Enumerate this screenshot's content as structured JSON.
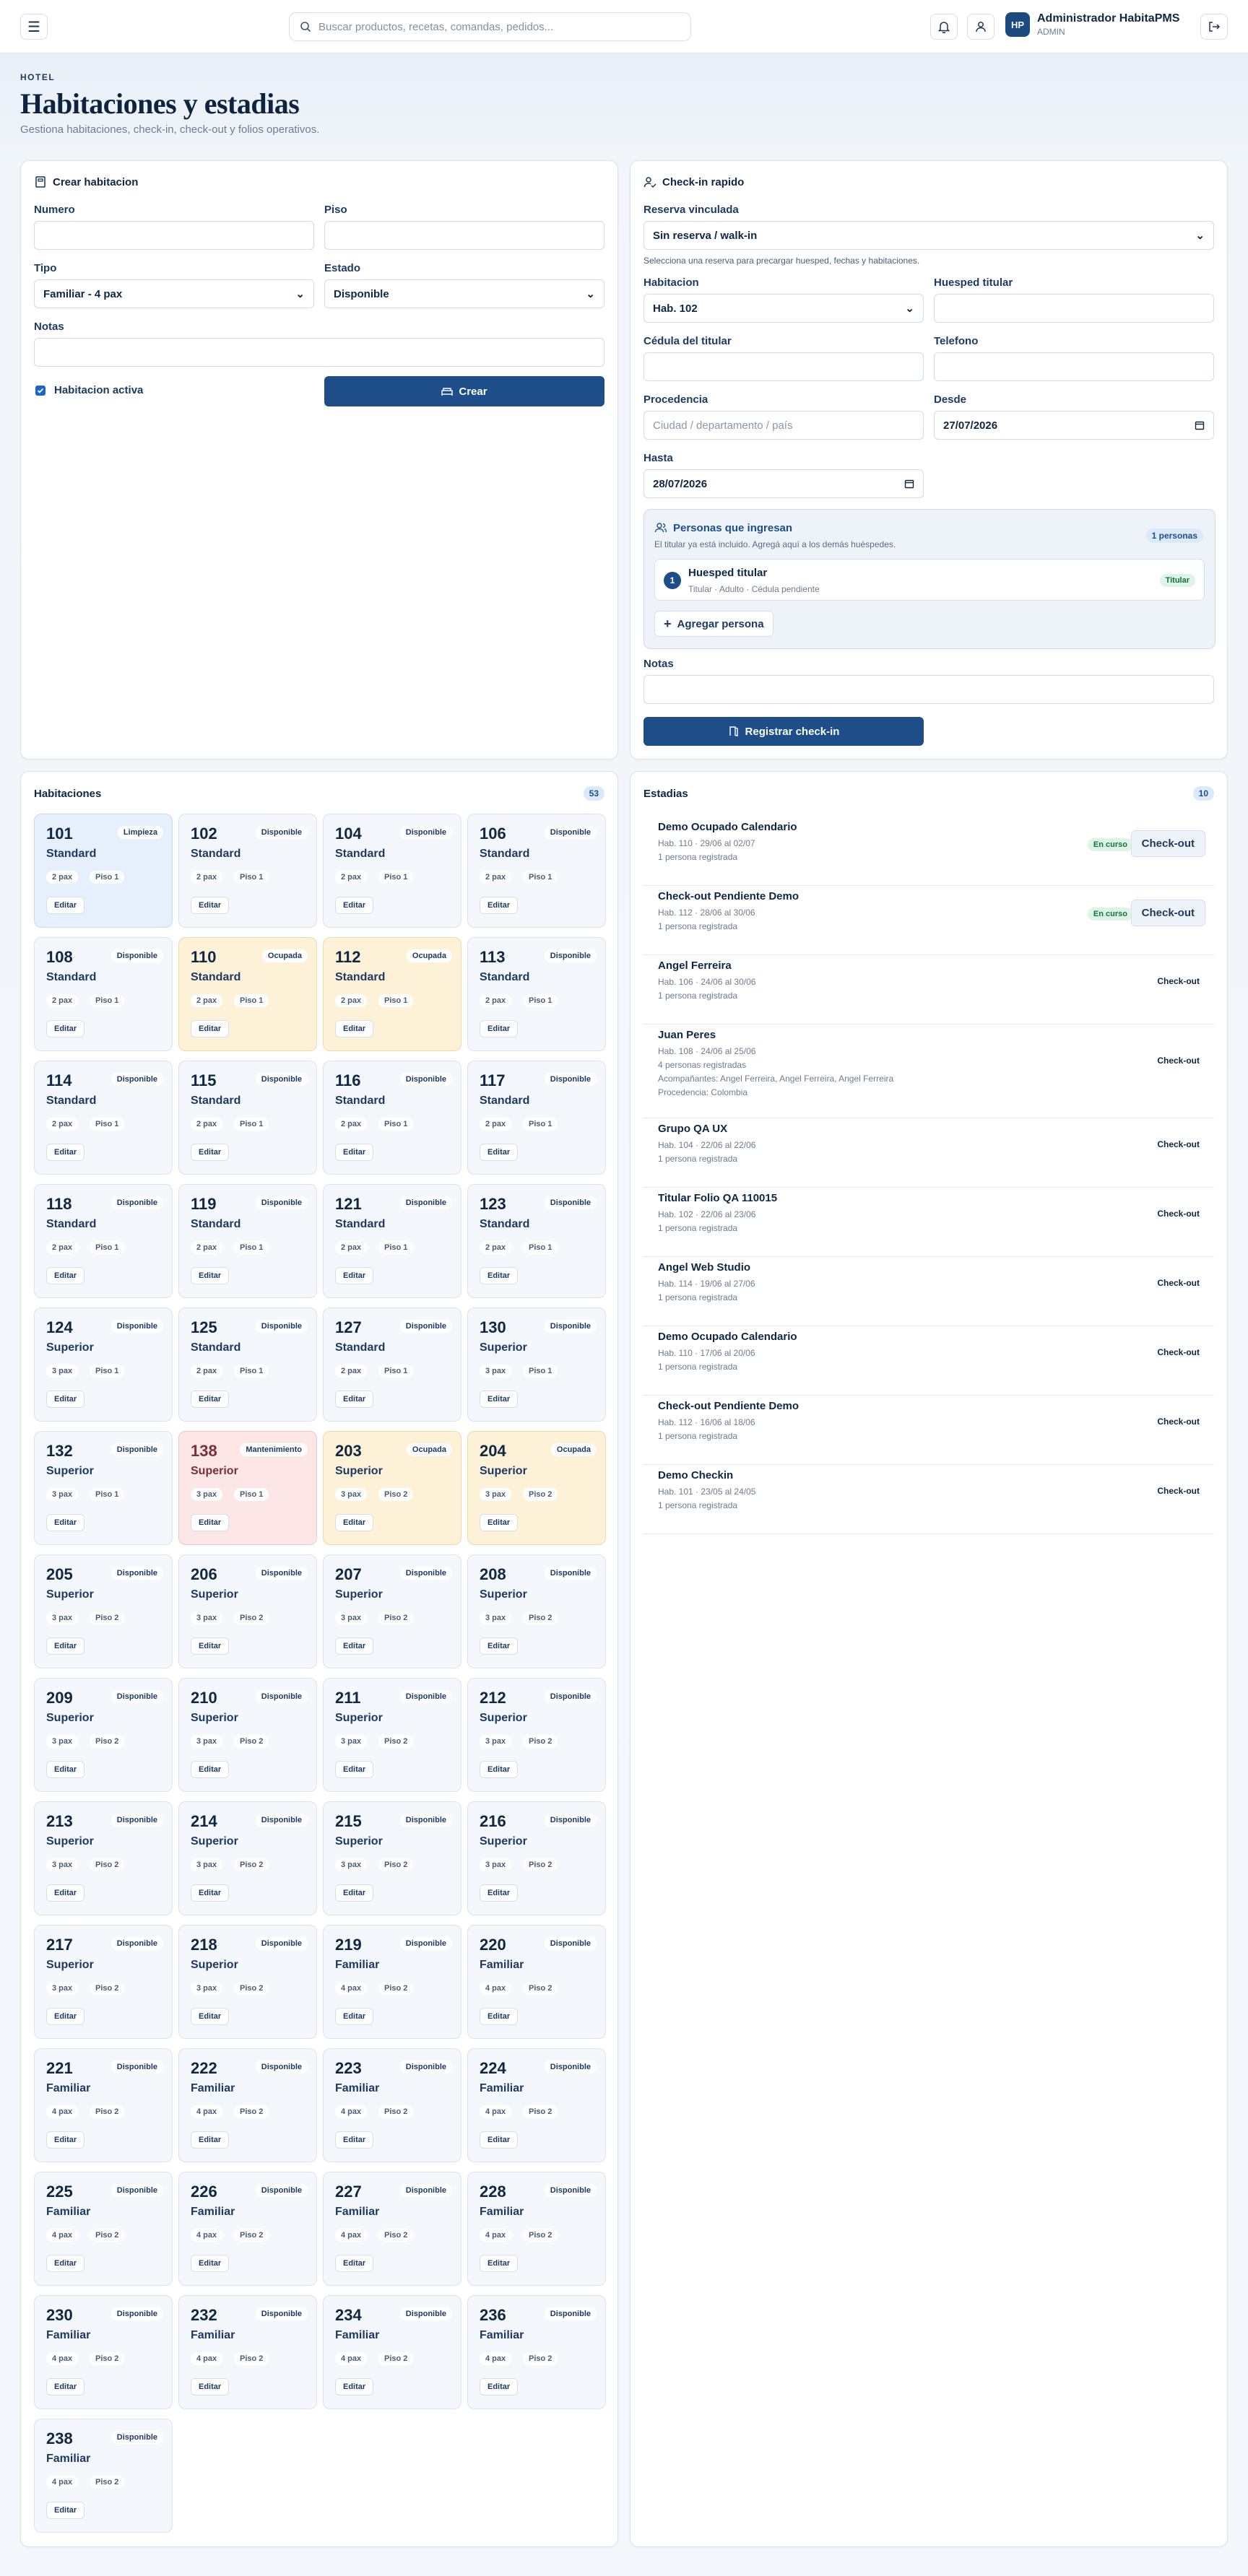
{
  "topbar": {
    "search_placeholder": "Buscar productos, recetas, comandas, pedidos...",
    "user_initials": "HP",
    "user_name": "Administrador HabitaPMS",
    "user_role": "ADMIN"
  },
  "header": {
    "eyebrow": "HOTEL",
    "title": "Habitaciones y estadias",
    "subtitle": "Gestiona habitaciones, check-in, check-out y folios operativos."
  },
  "create_room": {
    "title": "Crear habitacion",
    "numero_label": "Numero",
    "piso_label": "Piso",
    "tipo_label": "Tipo",
    "tipo_value": "Familiar - 4 pax",
    "estado_label": "Estado",
    "estado_value": "Disponible",
    "notas_label": "Notas",
    "activa_label": "Habitacion activa",
    "create_button": "Crear"
  },
  "checkin": {
    "title": "Check-in rapido",
    "reserva_label": "Reserva vinculada",
    "reserva_value": "Sin reserva / walk-in",
    "reserva_hint": "Selecciona una reserva para precargar huesped, fechas y habitaciones.",
    "habitacion_label": "Habitacion",
    "habitacion_value": "Hab. 102",
    "huesped_label": "Huesped titular",
    "cedula_label": "Cédula del titular",
    "telefono_label": "Telefono",
    "procedencia_label": "Procedencia",
    "procedencia_placeholder": "Ciudad / departamento / país",
    "desde_label": "Desde",
    "desde_value": "27/07/2026",
    "hasta_label": "Hasta",
    "hasta_value": "28/07/2026",
    "persons_title": "Personas que ingresan",
    "persons_hint": "El titular ya está incluido. Agregá aquí a los demás huéspedes.",
    "persons_count": "1 personas",
    "person_index": "1",
    "person_name": "Huesped titular",
    "person_detail": "Titular · Adulto · Cédula pendiente",
    "person_badge": "Titular",
    "add_person": "Agregar persona",
    "notas_label": "Notas",
    "submit": "Registrar check-in"
  },
  "rooms_panel": {
    "title": "Habitaciones",
    "count": "53",
    "edit_label": "Editar",
    "rooms": [
      {
        "num": "101",
        "status": "Limpieza",
        "type": "Standard",
        "pax": "2 pax",
        "floor": "Piso 1",
        "state": "cleaning"
      },
      {
        "num": "102",
        "status": "Disponible",
        "type": "Standard",
        "pax": "2 pax",
        "floor": "Piso 1",
        "state": "available"
      },
      {
        "num": "104",
        "status": "Disponible",
        "type": "Standard",
        "pax": "2 pax",
        "floor": "Piso 1",
        "state": "available"
      },
      {
        "num": "106",
        "status": "Disponible",
        "type": "Standard",
        "pax": "2 pax",
        "floor": "Piso 1",
        "state": "available"
      },
      {
        "num": "108",
        "status": "Disponible",
        "type": "Standard",
        "pax": "2 pax",
        "floor": "Piso 1",
        "state": "available"
      },
      {
        "num": "110",
        "status": "Ocupada",
        "type": "Standard",
        "pax": "2 pax",
        "floor": "Piso 1",
        "state": "occupied"
      },
      {
        "num": "112",
        "status": "Ocupada",
        "type": "Standard",
        "pax": "2 pax",
        "floor": "Piso 1",
        "state": "occupied"
      },
      {
        "num": "113",
        "status": "Disponible",
        "type": "Standard",
        "pax": "2 pax",
        "floor": "Piso 1",
        "state": "available"
      },
      {
        "num": "114",
        "status": "Disponible",
        "type": "Standard",
        "pax": "2 pax",
        "floor": "Piso 1",
        "state": "available"
      },
      {
        "num": "115",
        "status": "Disponible",
        "type": "Standard",
        "pax": "2 pax",
        "floor": "Piso 1",
        "state": "available"
      },
      {
        "num": "116",
        "status": "Disponible",
        "type": "Standard",
        "pax": "2 pax",
        "floor": "Piso 1",
        "state": "available"
      },
      {
        "num": "117",
        "status": "Disponible",
        "type": "Standard",
        "pax": "2 pax",
        "floor": "Piso 1",
        "state": "available"
      },
      {
        "num": "118",
        "status": "Disponible",
        "type": "Standard",
        "pax": "2 pax",
        "floor": "Piso 1",
        "state": "available"
      },
      {
        "num": "119",
        "status": "Disponible",
        "type": "Standard",
        "pax": "2 pax",
        "floor": "Piso 1",
        "state": "available"
      },
      {
        "num": "121",
        "status": "Disponible",
        "type": "Standard",
        "pax": "2 pax",
        "floor": "Piso 1",
        "state": "available"
      },
      {
        "num": "123",
        "status": "Disponible",
        "type": "Standard",
        "pax": "2 pax",
        "floor": "Piso 1",
        "state": "available"
      },
      {
        "num": "124",
        "status": "Disponible",
        "type": "Superior",
        "pax": "3 pax",
        "floor": "Piso 1",
        "state": "available"
      },
      {
        "num": "125",
        "status": "Disponible",
        "type": "Standard",
        "pax": "2 pax",
        "floor": "Piso 1",
        "state": "available"
      },
      {
        "num": "127",
        "status": "Disponible",
        "type": "Standard",
        "pax": "2 pax",
        "floor": "Piso 1",
        "state": "available"
      },
      {
        "num": "130",
        "status": "Disponible",
        "type": "Superior",
        "pax": "3 pax",
        "floor": "Piso 1",
        "state": "available"
      },
      {
        "num": "132",
        "status": "Disponible",
        "type": "Superior",
        "pax": "3 pax",
        "floor": "Piso 1",
        "state": "available"
      },
      {
        "num": "138",
        "status": "Mantenimiento",
        "type": "Superior",
        "pax": "3 pax",
        "floor": "Piso 1",
        "state": "maint"
      },
      {
        "num": "203",
        "status": "Ocupada",
        "type": "Superior",
        "pax": "3 pax",
        "floor": "Piso 2",
        "state": "occupied"
      },
      {
        "num": "204",
        "status": "Ocupada",
        "type": "Superior",
        "pax": "3 pax",
        "floor": "Piso 2",
        "state": "occupied"
      },
      {
        "num": "205",
        "status": "Disponible",
        "type": "Superior",
        "pax": "3 pax",
        "floor": "Piso 2",
        "state": "available"
      },
      {
        "num": "206",
        "status": "Disponible",
        "type": "Superior",
        "pax": "3 pax",
        "floor": "Piso 2",
        "state": "available"
      },
      {
        "num": "207",
        "status": "Disponible",
        "type": "Superior",
        "pax": "3 pax",
        "floor": "Piso 2",
        "state": "available"
      },
      {
        "num": "208",
        "status": "Disponible",
        "type": "Superior",
        "pax": "3 pax",
        "floor": "Piso 2",
        "state": "available"
      },
      {
        "num": "209",
        "status": "Disponible",
        "type": "Superior",
        "pax": "3 pax",
        "floor": "Piso 2",
        "state": "available"
      },
      {
        "num": "210",
        "status": "Disponible",
        "type": "Superior",
        "pax": "3 pax",
        "floor": "Piso 2",
        "state": "available"
      },
      {
        "num": "211",
        "status": "Disponible",
        "type": "Superior",
        "pax": "3 pax",
        "floor": "Piso 2",
        "state": "available"
      },
      {
        "num": "212",
        "status": "Disponible",
        "type": "Superior",
        "pax": "3 pax",
        "floor": "Piso 2",
        "state": "available"
      },
      {
        "num": "213",
        "status": "Disponible",
        "type": "Superior",
        "pax": "3 pax",
        "floor": "Piso 2",
        "state": "available"
      },
      {
        "num": "214",
        "status": "Disponible",
        "type": "Superior",
        "pax": "3 pax",
        "floor": "Piso 2",
        "state": "available"
      },
      {
        "num": "215",
        "status": "Disponible",
        "type": "Superior",
        "pax": "3 pax",
        "floor": "Piso 2",
        "state": "available"
      },
      {
        "num": "216",
        "status": "Disponible",
        "type": "Superior",
        "pax": "3 pax",
        "floor": "Piso 2",
        "state": "available"
      },
      {
        "num": "217",
        "status": "Disponible",
        "type": "Superior",
        "pax": "3 pax",
        "floor": "Piso 2",
        "state": "available"
      },
      {
        "num": "218",
        "status": "Disponible",
        "type": "Superior",
        "pax": "3 pax",
        "floor": "Piso 2",
        "state": "available"
      },
      {
        "num": "219",
        "status": "Disponible",
        "type": "Familiar",
        "pax": "4 pax",
        "floor": "Piso 2",
        "state": "available"
      },
      {
        "num": "220",
        "status": "Disponible",
        "type": "Familiar",
        "pax": "4 pax",
        "floor": "Piso 2",
        "state": "available"
      },
      {
        "num": "221",
        "status": "Disponible",
        "type": "Familiar",
        "pax": "4 pax",
        "floor": "Piso 2",
        "state": "available"
      },
      {
        "num": "222",
        "status": "Disponible",
        "type": "Familiar",
        "pax": "4 pax",
        "floor": "Piso 2",
        "state": "available"
      },
      {
        "num": "223",
        "status": "Disponible",
        "type": "Familiar",
        "pax": "4 pax",
        "floor": "Piso 2",
        "state": "available"
      },
      {
        "num": "224",
        "status": "Disponible",
        "type": "Familiar",
        "pax": "4 pax",
        "floor": "Piso 2",
        "state": "available"
      },
      {
        "num": "225",
        "status": "Disponible",
        "type": "Familiar",
        "pax": "4 pax",
        "floor": "Piso 2",
        "state": "available"
      },
      {
        "num": "226",
        "status": "Disponible",
        "type": "Familiar",
        "pax": "4 pax",
        "floor": "Piso 2",
        "state": "available"
      },
      {
        "num": "227",
        "status": "Disponible",
        "type": "Familiar",
        "pax": "4 pax",
        "floor": "Piso 2",
        "state": "available"
      },
      {
        "num": "228",
        "status": "Disponible",
        "type": "Familiar",
        "pax": "4 pax",
        "floor": "Piso 2",
        "state": "available"
      },
      {
        "num": "230",
        "status": "Disponible",
        "type": "Familiar",
        "pax": "4 pax",
        "floor": "Piso 2",
        "state": "available"
      },
      {
        "num": "232",
        "status": "Disponible",
        "type": "Familiar",
        "pax": "4 pax",
        "floor": "Piso 2",
        "state": "available"
      },
      {
        "num": "234",
        "status": "Disponible",
        "type": "Familiar",
        "pax": "4 pax",
        "floor": "Piso 2",
        "state": "available"
      },
      {
        "num": "236",
        "status": "Disponible",
        "type": "Familiar",
        "pax": "4 pax",
        "floor": "Piso 2",
        "state": "available"
      },
      {
        "num": "238",
        "status": "Disponible",
        "type": "Familiar",
        "pax": "4 pax",
        "floor": "Piso 2",
        "state": "available"
      }
    ]
  },
  "stays_panel": {
    "title": "Estadias",
    "count": "10",
    "stays": [
      {
        "guest": "Demo Ocupado Calendario",
        "info": "Hab. 110 · 29/06 al 02/07",
        "people": "1 persona registrada",
        "active": true,
        "badge": "En curso",
        "action": "Check-out"
      },
      {
        "guest": "Check-out Pendiente Demo",
        "info": "Hab. 112 · 28/06 al 30/06",
        "people": "1 persona registrada",
        "active": true,
        "badge": "En curso",
        "action": "Check-out"
      },
      {
        "guest": "Angel Ferreira",
        "info": "Hab. 106 · 24/06 al 30/06",
        "people": "1 persona registrada",
        "active": false,
        "action": "Check-out"
      },
      {
        "guest": "Juan Peres",
        "info": "Hab. 108 · 24/06 al 25/06",
        "people": "4 personas registradas",
        "extra1": "Acompañantes: Angel Ferreira, Angel Ferreira, Angel Ferreira",
        "extra2": "Procedencia: Colombia",
        "active": false,
        "action": "Check-out"
      },
      {
        "guest": "Grupo QA UX",
        "info": "Hab. 104 · 22/06 al 22/06",
        "people": "1 persona registrada",
        "active": false,
        "action": "Check-out"
      },
      {
        "guest": "Titular Folio QA 110015",
        "info": "Hab. 102 · 22/06 al 23/06",
        "people": "1 persona registrada",
        "active": false,
        "action": "Check-out"
      },
      {
        "guest": "Angel Web Studio",
        "info": "Hab. 114 · 19/06 al 27/06",
        "people": "1 persona registrada",
        "active": false,
        "action": "Check-out"
      },
      {
        "guest": "Demo Ocupado Calendario",
        "info": "Hab. 110 · 17/06 al 20/06",
        "people": "1 persona registrada",
        "active": false,
        "action": "Check-out"
      },
      {
        "guest": "Check-out Pendiente Demo",
        "info": "Hab. 112 · 16/06 al 18/06",
        "people": "1 persona registrada",
        "active": false,
        "action": "Check-out"
      },
      {
        "guest": "Demo Checkin",
        "info": "Hab. 101 · 23/05 al 24/05",
        "people": "1 persona registrada",
        "active": false,
        "action": "Check-out"
      }
    ]
  }
}
